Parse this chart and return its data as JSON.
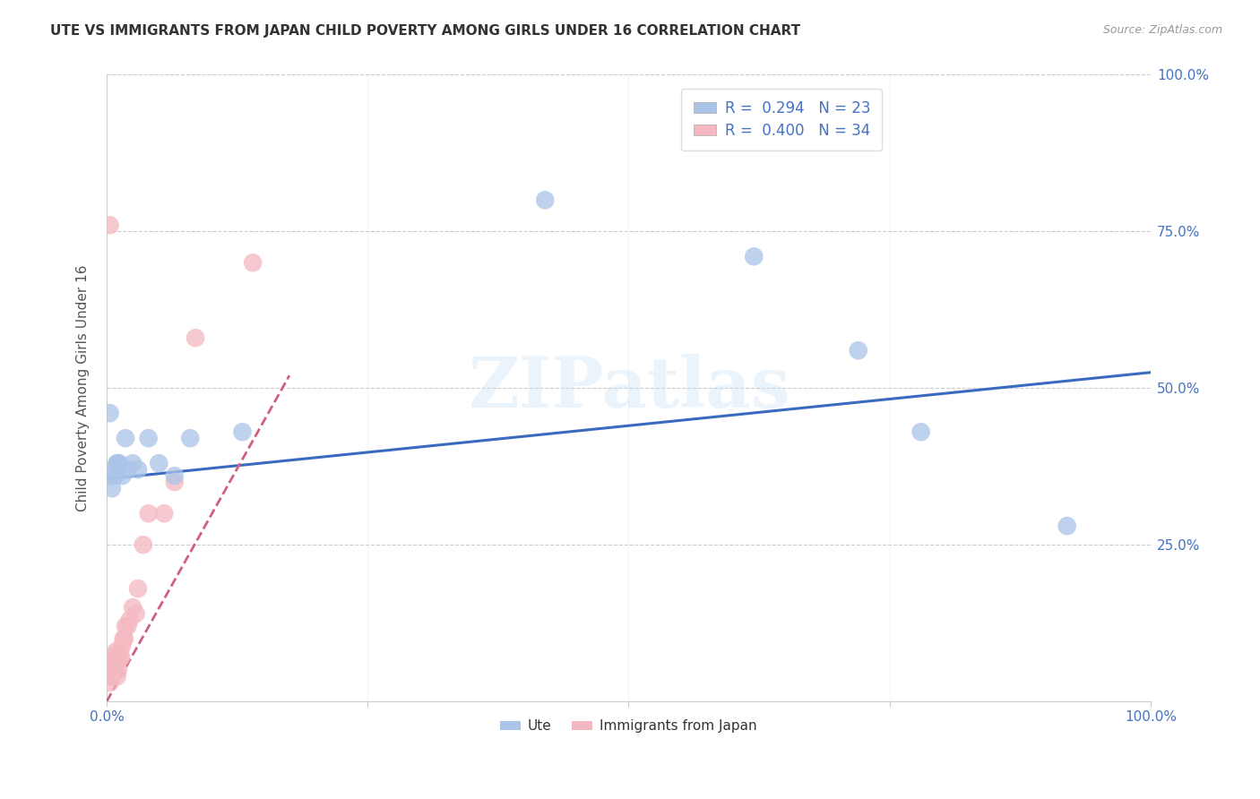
{
  "title": "UTE VS IMMIGRANTS FROM JAPAN CHILD POVERTY AMONG GIRLS UNDER 16 CORRELATION CHART",
  "source": "Source: ZipAtlas.com",
  "ylabel": "Child Poverty Among Girls Under 16",
  "xlim": [
    0,
    1
  ],
  "ylim": [
    0,
    1
  ],
  "ute_r": "0.294",
  "ute_n": "23",
  "japan_r": "0.400",
  "japan_n": "34",
  "background_color": "#ffffff",
  "ute_color": "#aac4e8",
  "japan_color": "#f4b8c1",
  "ute_line_color": "#3a6abf",
  "japan_line_color": "#d06080",
  "tick_color": "#4472c4",
  "grid_color": "#cccccc",
  "ute_x": [
    0.003,
    0.005,
    0.007,
    0.01,
    0.012,
    0.015,
    0.018,
    0.02,
    0.025,
    0.03,
    0.04,
    0.05,
    0.065,
    0.08,
    0.13,
    0.42,
    0.62,
    0.72,
    0.78,
    0.92,
    0.003,
    0.008,
    0.01
  ],
  "ute_y": [
    0.36,
    0.34,
    0.37,
    0.38,
    0.38,
    0.36,
    0.42,
    0.37,
    0.38,
    0.37,
    0.42,
    0.38,
    0.36,
    0.42,
    0.43,
    0.8,
    0.71,
    0.56,
    0.43,
    0.28,
    0.46,
    0.36,
    0.38
  ],
  "japan_x": [
    0.002,
    0.003,
    0.004,
    0.004,
    0.005,
    0.005,
    0.006,
    0.006,
    0.007,
    0.008,
    0.008,
    0.009,
    0.01,
    0.01,
    0.011,
    0.012,
    0.013,
    0.014,
    0.015,
    0.016,
    0.017,
    0.018,
    0.02,
    0.022,
    0.025,
    0.028,
    0.03,
    0.035,
    0.04,
    0.055,
    0.065,
    0.085,
    0.14,
    0.003
  ],
  "japan_y": [
    0.04,
    0.03,
    0.04,
    0.05,
    0.04,
    0.06,
    0.05,
    0.07,
    0.06,
    0.05,
    0.07,
    0.08,
    0.06,
    0.04,
    0.05,
    0.07,
    0.08,
    0.07,
    0.09,
    0.1,
    0.1,
    0.12,
    0.12,
    0.13,
    0.15,
    0.14,
    0.18,
    0.25,
    0.3,
    0.3,
    0.35,
    0.58,
    0.7,
    0.76
  ],
  "ute_line_x0": 0.0,
  "ute_line_y0": 0.355,
  "ute_line_x1": 1.0,
  "ute_line_y1": 0.525,
  "japan_line_x0": 0.0,
  "japan_line_y0": 0.0,
  "japan_line_x1": 0.175,
  "japan_line_y1": 0.52
}
